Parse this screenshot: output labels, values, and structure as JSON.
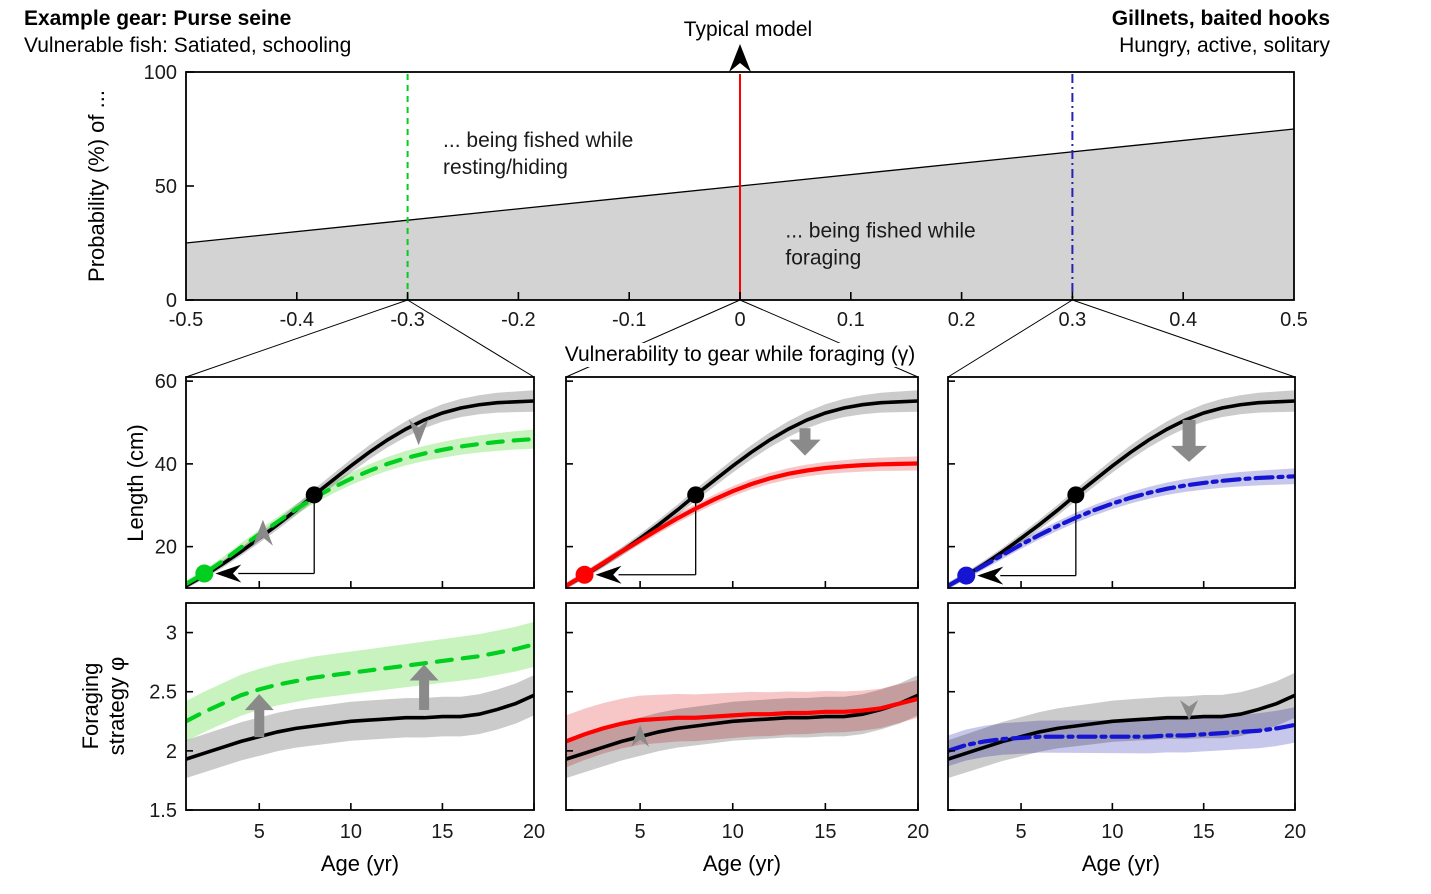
{
  "header": {
    "left_title": "Example gear: Purse seine",
    "left_subtitle": "Vulnerable fish: Satiated, schooling",
    "center_label": "Typical model",
    "right_title": "Gillnets, baited hooks",
    "right_subtitle": "Hungry, active, solitary"
  },
  "labels": {
    "probability_ylabel": "Probability (%) of ...",
    "vulnerability_xlabel": "Vulnerability to gear while foraging (γ)",
    "length_ylabel": "Length (cm)",
    "foraging_ylabel_line1": "Foraging",
    "foraging_ylabel_line2": "strategy φ",
    "age_xlabel": "Age (yr)"
  },
  "colors": {
    "green": "#00cf1f",
    "red": "#ff0000",
    "blue": "#1414d2",
    "black": "#000000",
    "area_gray": "#d3d3d3",
    "band_gray": "#cbcbcb",
    "band_green": "#c8f3bf",
    "band_red": "#f7c7c7",
    "band_blue": "#c7c7ec",
    "arrow_gray": "#8a8a8a"
  },
  "ages": [
    1,
    2,
    3,
    4,
    5,
    6,
    7,
    8,
    9,
    10,
    11,
    12,
    13,
    14,
    15,
    16,
    17,
    18,
    19,
    20
  ],
  "chart_data": [
    {
      "id": "top",
      "type": "area",
      "panel": "top",
      "title": "",
      "xlabel": "Vulnerability to gear while foraging (γ)",
      "ylabel": "Probability (%) of ...",
      "xlim": [
        -0.5,
        0.5
      ],
      "ylim": [
        0,
        100
      ],
      "xticks": [
        -0.5,
        -0.4,
        -0.3,
        -0.2,
        -0.1,
        0,
        0.1,
        0.2,
        0.3,
        0.4,
        0.5
      ],
      "xtick_labels": [
        "-0.5",
        "-0.4",
        "-0.3",
        "-0.2",
        "-0.1",
        "0",
        "0.1",
        "0.2",
        "0.3",
        "0.4",
        "0.5"
      ],
      "yticks": [
        0,
        50,
        100
      ],
      "ytick_labels": [
        "0",
        "50",
        "100"
      ],
      "boundary": {
        "x": [
          -0.5,
          0.5
        ],
        "y": [
          25,
          75
        ]
      },
      "area_below_fill": "#d3d3d3",
      "region_labels": [
        {
          "region": "resting",
          "lines": [
            "... being fished while",
            "resting/hiding"
          ],
          "x": -0.268,
          "y": 67
        },
        {
          "region": "foraging",
          "lines": [
            "... being fished while",
            "foraging"
          ],
          "x": 0.041,
          "y": 27.5
        }
      ],
      "scenario_lines": [
        {
          "scenario": "purse-seine",
          "x": -0.3,
          "color": "#00cf1f",
          "style": "dashed"
        },
        {
          "scenario": "typical-model",
          "x": 0,
          "color": "#ff0000",
          "style": "solid"
        },
        {
          "scenario": "gillnets-baited-hooks",
          "x": 0.3,
          "color": "#2323b8",
          "style": "dashdot"
        }
      ],
      "top_arrow": {
        "x": 0,
        "label": "Typical model"
      }
    },
    {
      "id": "length-purse-seine",
      "type": "line",
      "panel": "len0",
      "xlim": [
        1,
        20
      ],
      "ylim": [
        10,
        61
      ],
      "xticks": [
        5,
        10,
        15,
        20
      ],
      "yticks": [
        20,
        40,
        60
      ],
      "ytick_labels": [
        "20",
        "40",
        "60"
      ],
      "show_xtick_labels": false,
      "show_ytick_labels": true,
      "series": [
        {
          "name": "typical-model",
          "color": "#000000",
          "band": "#cbcbcb",
          "style": "solid",
          "band_hw": [
            0.7,
            2.6
          ],
          "values": [
            10.5,
            13,
            15.8,
            18.8,
            22,
            25.3,
            28.8,
            32.5,
            36,
            39.5,
            42.8,
            45.8,
            48.4,
            50.6,
            52.3,
            53.5,
            54.3,
            54.8,
            55,
            55.2
          ]
        },
        {
          "name": "purse-seine-evolved",
          "color": "#00cf1f",
          "band": "#c8f3bf",
          "style": "dashed",
          "band_hw": [
            0.8,
            2.3
          ],
          "values": [
            11,
            13.5,
            16.5,
            19.8,
            23,
            26,
            29,
            31.8,
            34.2,
            36.4,
            38.3,
            40,
            41.4,
            42.5,
            43.4,
            44.2,
            44.8,
            45.3,
            45.7,
            46
          ]
        }
      ],
      "maturation": {
        "typical": {
          "age": 8,
          "value": 32.5
        },
        "scenario": {
          "age": 2,
          "value": 13.5
        }
      },
      "arrows": [
        {
          "kind": "dart",
          "dir": "up",
          "x": 5.2,
          "y": 26.5,
          "L": 26,
          "W": 10
        },
        {
          "kind": "dart",
          "dir": "down",
          "x": 13.7,
          "y": 44.5,
          "L": 26,
          "W": 10
        }
      ]
    },
    {
      "id": "length-typical",
      "type": "line",
      "panel": "len1",
      "xlim": [
        1,
        20
      ],
      "ylim": [
        10,
        61
      ],
      "xticks": [
        5,
        10,
        15,
        20
      ],
      "yticks": [
        20,
        40,
        60
      ],
      "ytick_labels": [
        "20",
        "40",
        "60"
      ],
      "show_xtick_labels": false,
      "show_ytick_labels": false,
      "series": [
        {
          "name": "typical-model",
          "color": "#000000",
          "band": "#cbcbcb",
          "style": "solid",
          "band_hw": [
            0.7,
            2.6
          ],
          "values": [
            10.5,
            13,
            15.8,
            18.8,
            22,
            25.3,
            28.8,
            32.5,
            36,
            39.5,
            42.8,
            45.8,
            48.4,
            50.6,
            52.3,
            53.5,
            54.3,
            54.8,
            55,
            55.2
          ]
        },
        {
          "name": "typical-evolved",
          "color": "#ff0000",
          "band": "#f7c7c7",
          "style": "solid",
          "band_hw": [
            0.8,
            1.7
          ],
          "values": [
            10.5,
            13.2,
            16,
            18.8,
            21.5,
            24.2,
            26.8,
            29.2,
            31.4,
            33.4,
            35.1,
            36.5,
            37.6,
            38.4,
            39,
            39.4,
            39.7,
            39.9,
            40,
            40.1
          ]
        }
      ],
      "maturation": {
        "typical": {
          "age": 8,
          "value": 32.5
        },
        "scenario": {
          "age": 2,
          "value": 13.2
        }
      },
      "arrows": [
        {
          "kind": "thick",
          "dir": "down",
          "x": 13.9,
          "y_tail": 48.5,
          "y_tip": 42,
          "w": 11
        }
      ]
    },
    {
      "id": "length-gillnets",
      "type": "line",
      "panel": "len2",
      "xlim": [
        1,
        20
      ],
      "ylim": [
        10,
        61
      ],
      "xticks": [
        5,
        10,
        15,
        20
      ],
      "yticks": [
        20,
        40,
        60
      ],
      "ytick_labels": [
        "20",
        "40",
        "60"
      ],
      "show_xtick_labels": false,
      "show_ytick_labels": false,
      "series": [
        {
          "name": "typical-model",
          "color": "#000000",
          "band": "#cbcbcb",
          "style": "solid",
          "band_hw": [
            0.7,
            2.6
          ],
          "values": [
            10.5,
            13,
            15.8,
            18.8,
            22,
            25.3,
            28.8,
            32.5,
            36,
            39.5,
            42.8,
            45.8,
            48.4,
            50.6,
            52.3,
            53.5,
            54.3,
            54.8,
            55,
            55.2
          ]
        },
        {
          "name": "gillnets-evolved",
          "color": "#1414d2",
          "band": "#c7c7ec",
          "style": "dashdot",
          "band_hw": [
            0.8,
            1.9
          ],
          "values": [
            10.5,
            13,
            15.5,
            18,
            20.5,
            22.8,
            25,
            27,
            28.8,
            30.4,
            31.8,
            33,
            34,
            34.8,
            35.4,
            35.9,
            36.3,
            36.6,
            36.8,
            37
          ]
        }
      ],
      "maturation": {
        "typical": {
          "age": 8,
          "value": 32.5
        },
        "scenario": {
          "age": 2,
          "value": 13
        }
      },
      "arrows": [
        {
          "kind": "thick",
          "dir": "down",
          "x": 14.2,
          "y_tail": 50.5,
          "y_tip": 40.5,
          "w": 13
        }
      ]
    },
    {
      "id": "phi-purse-seine",
      "type": "line",
      "panel": "phi0",
      "xlim": [
        1,
        20
      ],
      "ylim": [
        1.5,
        3.25
      ],
      "xticks": [
        5,
        10,
        15,
        20
      ],
      "yticks": [
        1.5,
        2,
        2.5,
        3
      ],
      "ytick_labels": [
        "1.5",
        "2",
        "2.5",
        "3"
      ],
      "xtick_labels": [
        "5",
        "10",
        "15",
        "20"
      ],
      "show_xtick_labels": true,
      "show_ytick_labels": true,
      "series": [
        {
          "name": "typical-model",
          "color": "#000000",
          "band": "#cbcbcb",
          "style": "solid",
          "band_hw": [
            0.16,
            0.17
          ],
          "values": [
            1.93,
            1.98,
            2.03,
            2.08,
            2.12,
            2.16,
            2.19,
            2.21,
            2.23,
            2.25,
            2.26,
            2.27,
            2.28,
            2.28,
            2.29,
            2.29,
            2.31,
            2.35,
            2.4,
            2.47
          ]
        },
        {
          "name": "purse-seine-evolved",
          "color": "#00cf1f",
          "band": "#c8f3bf",
          "style": "dashed",
          "band_hw": [
            0.17,
            0.19
          ],
          "values": [
            2.25,
            2.33,
            2.4,
            2.47,
            2.52,
            2.56,
            2.59,
            2.62,
            2.64,
            2.66,
            2.68,
            2.7,
            2.72,
            2.74,
            2.76,
            2.78,
            2.8,
            2.83,
            2.86,
            2.9
          ]
        }
      ],
      "arrows": [
        {
          "kind": "thick",
          "dir": "up",
          "x": 5,
          "y_tail": 2.12,
          "y_tip": 2.48,
          "w": 10
        },
        {
          "kind": "thick",
          "dir": "up",
          "x": 14,
          "y_tail": 2.35,
          "y_tip": 2.73,
          "w": 10
        }
      ]
    },
    {
      "id": "phi-typical",
      "type": "line",
      "panel": "phi1",
      "xlim": [
        1,
        20
      ],
      "ylim": [
        1.5,
        3.25
      ],
      "xticks": [
        5,
        10,
        15,
        20
      ],
      "yticks": [
        1.5,
        2,
        2.5,
        3
      ],
      "ytick_labels": [
        "1.5",
        "2",
        "2.5",
        "3"
      ],
      "xtick_labels": [
        "5",
        "10",
        "15",
        "20"
      ],
      "show_xtick_labels": true,
      "show_ytick_labels": false,
      "series": [
        {
          "name": "typical-model",
          "color": "#000000",
          "band": "#cbcbcb",
          "style": "solid",
          "band_hw": [
            0.16,
            0.17
          ],
          "values": [
            1.93,
            1.98,
            2.03,
            2.08,
            2.12,
            2.16,
            2.19,
            2.21,
            2.23,
            2.25,
            2.26,
            2.27,
            2.28,
            2.28,
            2.29,
            2.29,
            2.31,
            2.35,
            2.4,
            2.47
          ]
        },
        {
          "name": "typical-evolved",
          "color": "#ff0000",
          "band": "#f7c7c7",
          "style": "solid",
          "band_hw": [
            0.22,
            0.16
          ],
          "values": [
            2.08,
            2.14,
            2.19,
            2.23,
            2.26,
            2.27,
            2.28,
            2.28,
            2.29,
            2.3,
            2.31,
            2.31,
            2.32,
            2.32,
            2.33,
            2.33,
            2.34,
            2.36,
            2.4,
            2.44
          ]
        }
      ],
      "arrows": [
        {
          "kind": "dart",
          "dir": "up",
          "x": 5,
          "y": 2.22,
          "L": 22,
          "W": 9
        }
      ]
    },
    {
      "id": "phi-gillnets",
      "type": "line",
      "panel": "phi2",
      "xlim": [
        1,
        20
      ],
      "ylim": [
        1.5,
        3.25
      ],
      "xticks": [
        5,
        10,
        15,
        20
      ],
      "yticks": [
        1.5,
        2,
        2.5,
        3
      ],
      "ytick_labels": [
        "1.5",
        "2",
        "2.5",
        "3"
      ],
      "xtick_labels": [
        "5",
        "10",
        "15",
        "20"
      ],
      "show_xtick_labels": true,
      "show_ytick_labels": false,
      "series": [
        {
          "name": "typical-model",
          "color": "#000000",
          "band": "#cbcbcb",
          "style": "solid",
          "band_hw": [
            0.16,
            0.19
          ],
          "values": [
            1.93,
            1.98,
            2.03,
            2.08,
            2.12,
            2.16,
            2.19,
            2.21,
            2.23,
            2.25,
            2.26,
            2.27,
            2.28,
            2.28,
            2.29,
            2.29,
            2.31,
            2.35,
            2.4,
            2.47
          ]
        },
        {
          "name": "gillnets-evolved",
          "color": "#1414d2",
          "band": "#c7c7ec",
          "style": "dashdot",
          "band_hw": [
            0.13,
            0.15
          ],
          "values": [
            2.0,
            2.05,
            2.08,
            2.1,
            2.11,
            2.12,
            2.12,
            2.12,
            2.12,
            2.12,
            2.12,
            2.12,
            2.13,
            2.13,
            2.14,
            2.15,
            2.16,
            2.17,
            2.19,
            2.22
          ]
        }
      ],
      "arrows": [
        {
          "kind": "dart",
          "dir": "down",
          "x": 14.2,
          "y": 2.26,
          "L": 20,
          "W": 9
        }
      ]
    }
  ]
}
